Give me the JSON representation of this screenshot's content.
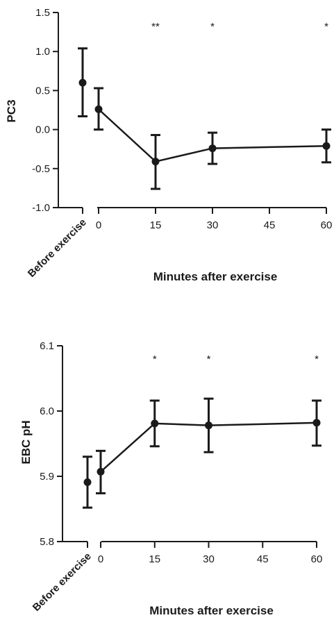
{
  "chart_data": [
    {
      "type": "line",
      "ylabel": "PC3",
      "xlabel": "Minutes after exercise",
      "ylim": [
        -1.0,
        1.5
      ],
      "y_ticks": [
        "1.5",
        "1.0",
        "0.5",
        "0.0",
        "-0.5",
        "-1.0"
      ],
      "x_ticks": [
        "0",
        "15",
        "30",
        "45",
        "60"
      ],
      "baseline_label": "Before exercise",
      "baseline": {
        "y": 0.6,
        "low": 0.17,
        "high": 1.04
      },
      "points": [
        {
          "x": 0,
          "y": 0.26,
          "low": 0.0,
          "high": 0.53,
          "sig": ""
        },
        {
          "x": 15,
          "y": -0.41,
          "low": -0.76,
          "high": -0.07,
          "sig": "**"
        },
        {
          "x": 30,
          "y": -0.24,
          "low": -0.44,
          "high": -0.04,
          "sig": "*"
        },
        {
          "x": 60,
          "y": -0.21,
          "low": -0.42,
          "high": 0.0,
          "sig": "*"
        }
      ]
    },
    {
      "type": "line",
      "ylabel": "EBC pH",
      "xlabel": "Minutes after exercise",
      "ylim": [
        5.8,
        6.1
      ],
      "y_ticks": [
        "6.1",
        "6.0",
        "5.9",
        "5.8"
      ],
      "x_ticks": [
        "0",
        "15",
        "30",
        "45",
        "60"
      ],
      "baseline_label": "Before exercise",
      "baseline": {
        "y": 5.891,
        "low": 5.852,
        "high": 5.93
      },
      "points": [
        {
          "x": 0,
          "y": 5.907,
          "low": 5.874,
          "high": 5.939,
          "sig": ""
        },
        {
          "x": 15,
          "y": 5.981,
          "low": 5.946,
          "high": 6.016,
          "sig": "*"
        },
        {
          "x": 30,
          "y": 5.978,
          "low": 5.937,
          "high": 6.019,
          "sig": "*"
        },
        {
          "x": 60,
          "y": 5.982,
          "low": 5.947,
          "high": 6.016,
          "sig": "*"
        }
      ]
    }
  ]
}
